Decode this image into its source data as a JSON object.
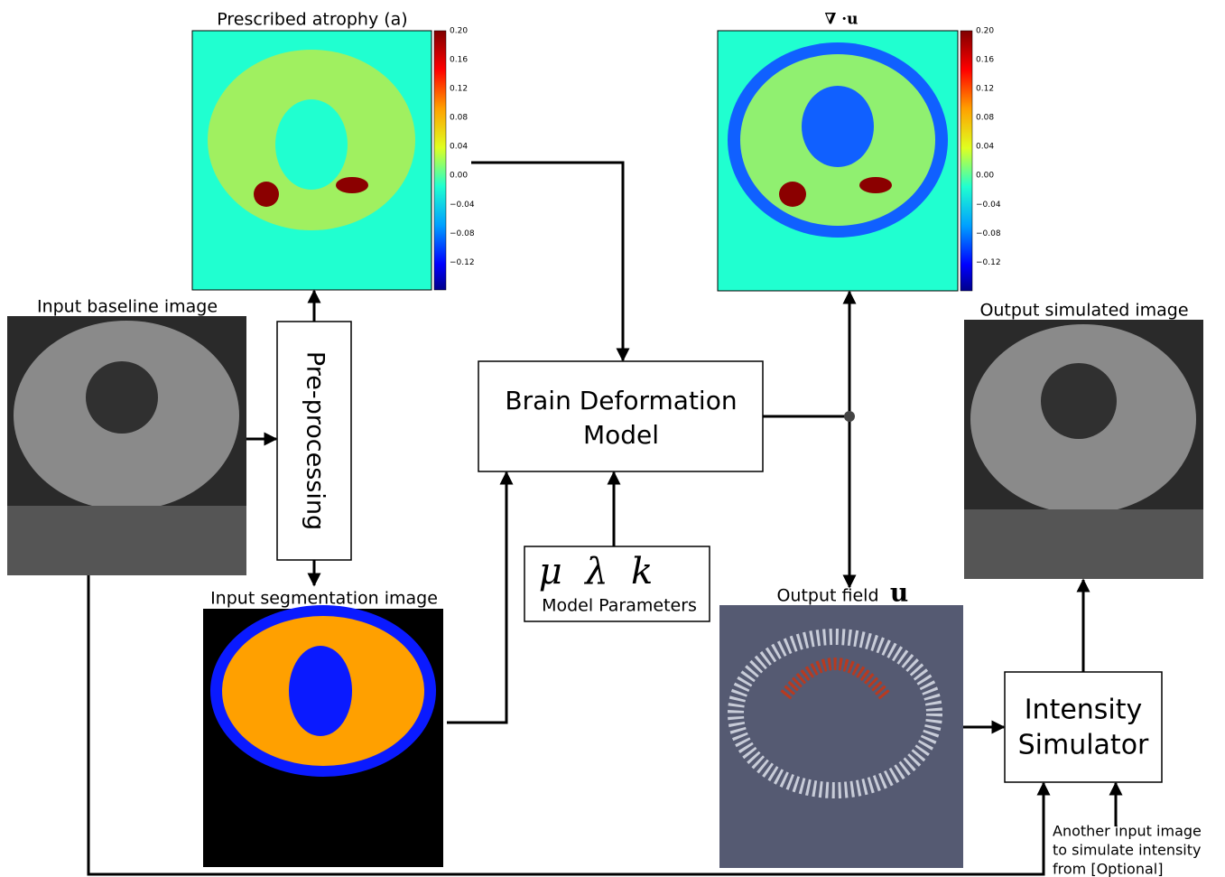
{
  "panels": {
    "atrophy": {
      "title": "Prescribed atrophy (a)",
      "colorbar_ticks": [
        "0.20",
        "0.16",
        "0.12",
        "0.08",
        "0.04",
        "0.00",
        "−0.04",
        "−0.08",
        "−0.12"
      ]
    },
    "divergence": {
      "title": "∇ ·u",
      "colorbar_ticks": [
        "0.20",
        "0.16",
        "0.12",
        "0.08",
        "0.04",
        "0.00",
        "−0.04",
        "−0.08",
        "−0.12"
      ]
    },
    "baseline": {
      "title": "Input baseline image"
    },
    "segmentation": {
      "title": "Input segmentation image"
    },
    "output_image": {
      "title": "Output simulated image"
    },
    "output_field": {
      "title": "Output field",
      "symbol": "u"
    }
  },
  "nodes": {
    "preprocessing": {
      "label": "Pre-processing"
    },
    "model": {
      "lines": [
        "Brain Deformation",
        "Model"
      ]
    },
    "parameters": {
      "symbols": "μ  λ  k",
      "label": "Model Parameters"
    },
    "simulator": {
      "lines": [
        "Intensity",
        "Simulator"
      ]
    },
    "optional_input": {
      "lines": [
        "Another input image",
        "to simulate intensity",
        "from [Optional]"
      ]
    }
  }
}
